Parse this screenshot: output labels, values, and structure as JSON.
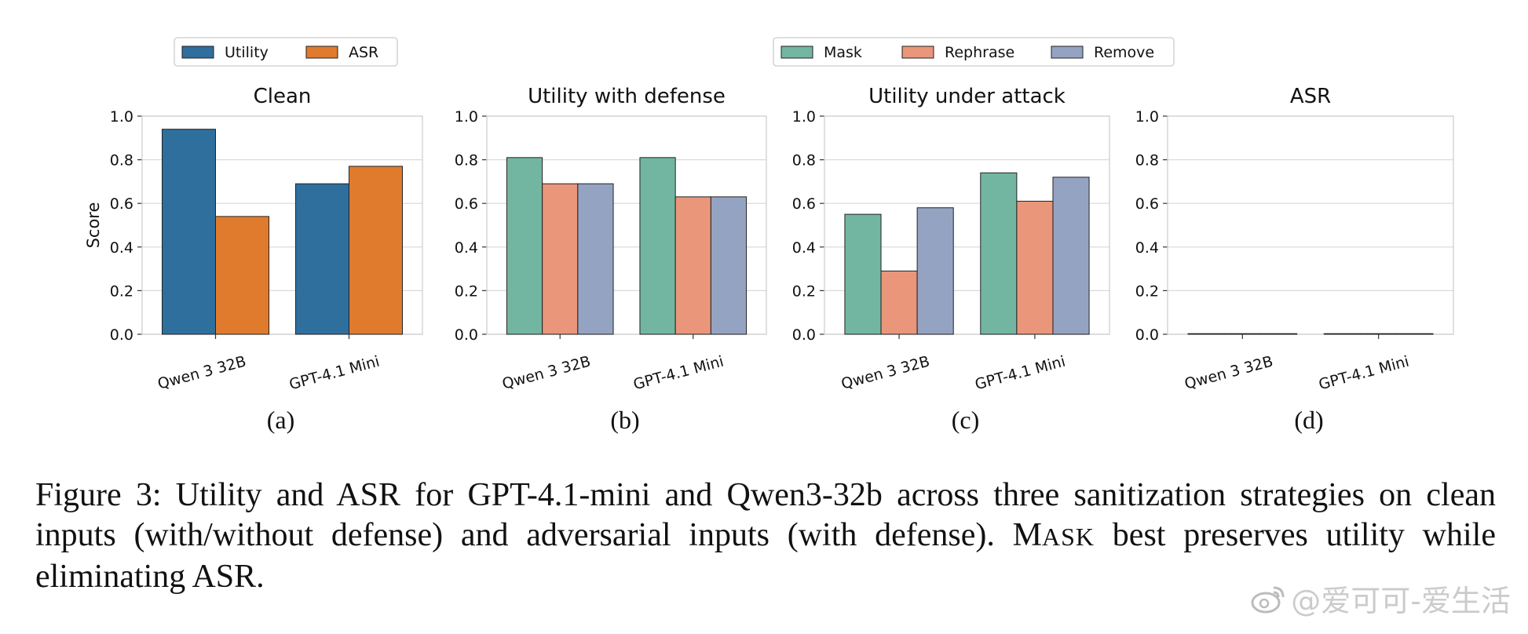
{
  "legends": [
    {
      "entries": [
        {
          "label": "Utility",
          "color": "#2e6f9e"
        },
        {
          "label": "ASR",
          "color": "#e07b2e"
        }
      ]
    },
    {
      "entries": [
        {
          "label": "Mask",
          "color": "#72b6a1"
        },
        {
          "label": "Rephrase",
          "color": "#e9967a"
        },
        {
          "label": "Remove",
          "color": "#95a3c3"
        }
      ]
    }
  ],
  "chart_data": [
    {
      "type": "bar",
      "title": "Clean",
      "sublabel": "(a)",
      "ylabel": "Score",
      "ylim": [
        0,
        1.0
      ],
      "yticks": [
        "0.0",
        "0.2",
        "0.4",
        "0.6",
        "0.8",
        "1.0"
      ],
      "categories": [
        "Qwen 3 32B",
        "GPT-4.1 Mini"
      ],
      "series": [
        {
          "name": "Utility",
          "color": "#2e6f9e",
          "values": [
            0.94,
            0.69
          ]
        },
        {
          "name": "ASR",
          "color": "#e07b2e",
          "values": [
            0.54,
            0.77
          ]
        }
      ]
    },
    {
      "type": "bar",
      "title": "Utility with defense",
      "sublabel": "(b)",
      "ylabel": "",
      "ylim": [
        0,
        1.0
      ],
      "yticks": [
        "0.0",
        "0.2",
        "0.4",
        "0.6",
        "0.8",
        "1.0"
      ],
      "categories": [
        "Qwen 3 32B",
        "GPT-4.1 Mini"
      ],
      "series": [
        {
          "name": "Mask",
          "color": "#72b6a1",
          "values": [
            0.81,
            0.81
          ]
        },
        {
          "name": "Rephrase",
          "color": "#e9967a",
          "values": [
            0.69,
            0.63
          ]
        },
        {
          "name": "Remove",
          "color": "#95a3c3",
          "values": [
            0.69,
            0.63
          ]
        }
      ]
    },
    {
      "type": "bar",
      "title": "Utility under attack",
      "sublabel": "(c)",
      "ylabel": "",
      "ylim": [
        0,
        1.0
      ],
      "yticks": [
        "0.0",
        "0.2",
        "0.4",
        "0.6",
        "0.8",
        "1.0"
      ],
      "categories": [
        "Qwen 3 32B",
        "GPT-4.1 Mini"
      ],
      "series": [
        {
          "name": "Mask",
          "color": "#72b6a1",
          "values": [
            0.55,
            0.74
          ]
        },
        {
          "name": "Rephrase",
          "color": "#e9967a",
          "values": [
            0.29,
            0.61
          ]
        },
        {
          "name": "Remove",
          "color": "#95a3c3",
          "values": [
            0.58,
            0.72
          ]
        }
      ]
    },
    {
      "type": "bar",
      "title": "ASR",
      "sublabel": "(d)",
      "ylabel": "",
      "ylim": [
        0,
        1.0
      ],
      "yticks": [
        "0.0",
        "0.2",
        "0.4",
        "0.6",
        "0.8",
        "1.0"
      ],
      "categories": [
        "Qwen 3 32B",
        "GPT-4.1 Mini"
      ],
      "series": [
        {
          "name": "Mask",
          "color": "#72b6a1",
          "values": [
            0.0,
            0.0
          ]
        },
        {
          "name": "Rephrase",
          "color": "#e9967a",
          "values": [
            0.0,
            0.0
          ]
        },
        {
          "name": "Remove",
          "color": "#95a3c3",
          "values": [
            0.0,
            0.0
          ]
        }
      ]
    }
  ],
  "caption": {
    "prefix": "Figure 3: Utility and ASR for GPT-4.1-mini and Qwen3-32b across three sanitization strategies on clean inputs (with/without defense) and adversarial inputs (with defense). ",
    "smallcaps_M": "M",
    "smallcaps_rest": "ASK",
    "suffix": " best preserves utility while eliminating ASR."
  },
  "watermark": {
    "text": "@爱可可-爱生活",
    "icon": "weibo-icon"
  }
}
